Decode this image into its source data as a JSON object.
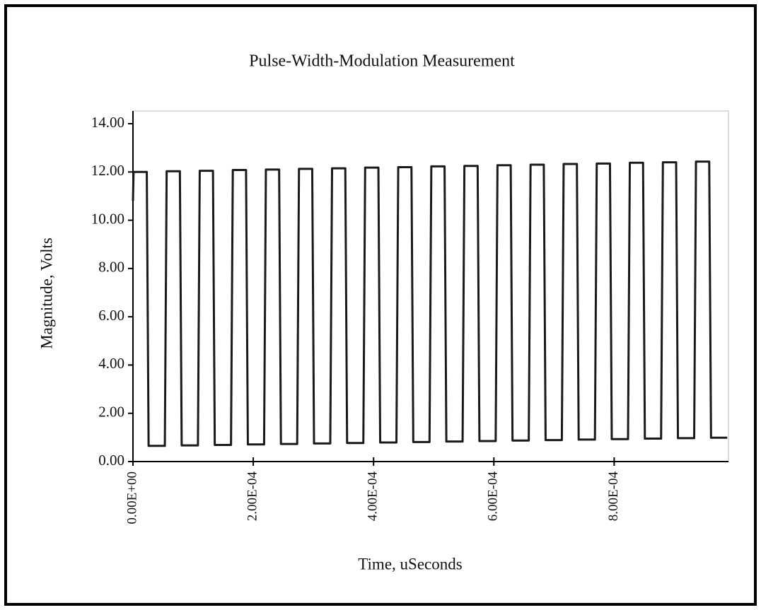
{
  "chart_data": {
    "type": "line",
    "title": "Pulse-Width-Modulation Measurement",
    "x_label": "Time, uSeconds",
    "y_label": "Magnitude, Volts",
    "x": [
      0,
      1e-06,
      2.3e-05,
      2.6e-05,
      5.3e-05,
      5.6e-05,
      7.8e-05,
      8.1e-05,
      0.000108,
      0.000111,
      0.000133,
      0.000136,
      0.000163,
      0.000166,
      0.000188,
      0.000191,
      0.000218,
      0.000221,
      0.000243,
      0.000246,
      0.000273,
      0.000276,
      0.000298,
      0.000301,
      0.000328,
      0.000331,
      0.000353,
      0.000356,
      0.000383,
      0.000386,
      0.000408,
      0.000411,
      0.000438,
      0.000441,
      0.000463,
      0.000466,
      0.000493,
      0.000496,
      0.000518,
      0.000521,
      0.000548,
      0.000551,
      0.000573,
      0.000576,
      0.000603,
      0.000606,
      0.000628,
      0.000631,
      0.000658,
      0.000661,
      0.000683,
      0.000686,
      0.000713,
      0.000716,
      0.000738,
      0.000741,
      0.000768,
      0.000771,
      0.000793,
      0.000796,
      0.000823,
      0.000826,
      0.000848,
      0.000851,
      0.000878,
      0.000881,
      0.000903,
      0.000906,
      0.000933,
      0.000936,
      0.000958,
      0.000961,
      0.000988
    ],
    "series": [
      {
        "color": "#1a1a1a",
        "values": [
          10.8,
          12.0,
          12.0,
          0.65,
          0.65,
          12.03,
          12.03,
          0.67,
          0.67,
          12.05,
          12.05,
          0.69,
          0.69,
          12.08,
          12.08,
          0.71,
          0.71,
          12.1,
          12.1,
          0.73,
          0.73,
          12.13,
          12.13,
          0.75,
          0.75,
          12.15,
          12.15,
          0.77,
          0.77,
          12.18,
          12.18,
          0.79,
          0.79,
          12.2,
          12.2,
          0.81,
          0.81,
          12.23,
          12.23,
          0.83,
          0.83,
          12.25,
          12.25,
          0.85,
          0.85,
          12.28,
          12.28,
          0.87,
          0.87,
          12.3,
          12.3,
          0.89,
          0.89,
          12.33,
          12.33,
          0.91,
          0.91,
          12.35,
          12.35,
          0.93,
          0.93,
          12.38,
          12.38,
          0.95,
          0.95,
          12.4,
          12.4,
          0.97,
          0.97,
          12.43,
          12.43,
          0.99,
          0.99
        ]
      }
    ],
    "xlim": [
      0,
      0.00099
    ],
    "xticks": [
      {
        "value": 0,
        "label": "0.00E+00"
      },
      {
        "value": 0.0002,
        "label": "2.00E-04"
      },
      {
        "value": 0.0004,
        "label": "4.00E-04"
      },
      {
        "value": 0.0006,
        "label": "6.00E-04"
      },
      {
        "value": 0.0008,
        "label": "8.00E-04"
      }
    ],
    "ylim": [
      0,
      14
    ],
    "yticks": [
      {
        "value": 0,
        "label": "0.00"
      },
      {
        "value": 2,
        "label": "2.00"
      },
      {
        "value": 4,
        "label": "4.00"
      },
      {
        "value": 6,
        "label": "6.00"
      },
      {
        "value": 8,
        "label": "8.00"
      },
      {
        "value": 10,
        "label": "10.00"
      },
      {
        "value": 12,
        "label": "12.00"
      },
      {
        "value": 14,
        "label": "14.00"
      }
    ],
    "grid": false
  }
}
